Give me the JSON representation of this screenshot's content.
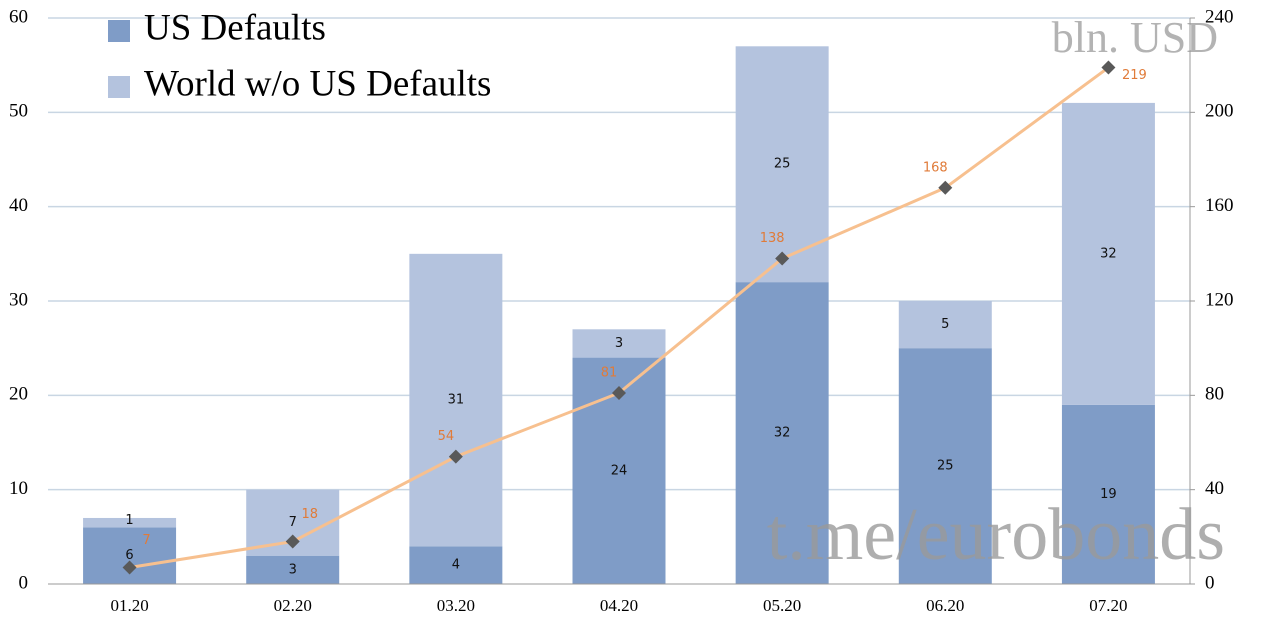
{
  "chart_data": {
    "type": "bar",
    "categories": [
      "01.20",
      "02.20",
      "03.20",
      "04.20",
      "05.20",
      "06.20",
      "07.20"
    ],
    "series": [
      {
        "name": "US Defaults",
        "color": "#7f9cc7",
        "values": [
          6,
          3,
          4,
          24,
          32,
          25,
          19
        ]
      },
      {
        "name": "World w/o US Defaults",
        "color": "#b4c3de",
        "values": [
          1,
          7,
          31,
          3,
          25,
          5,
          32
        ]
      },
      {
        "type": "line",
        "axis": "y2",
        "color": "#f7c08f",
        "marker_color": "#595959",
        "label_color": "#e07b39",
        "values": [
          7,
          18,
          54,
          81,
          138,
          168,
          219
        ]
      }
    ],
    "stacked": true,
    "ylim": [
      0,
      60
    ],
    "yticks": [
      0,
      10,
      20,
      30,
      40,
      50,
      60
    ],
    "y2lim": [
      0,
      240
    ],
    "y2ticks": [
      0,
      40,
      80,
      120,
      160,
      200,
      240
    ],
    "grid": true,
    "legend": "top-left",
    "annotations": [
      "bln. USD",
      "t.me/eurobonds"
    ]
  }
}
